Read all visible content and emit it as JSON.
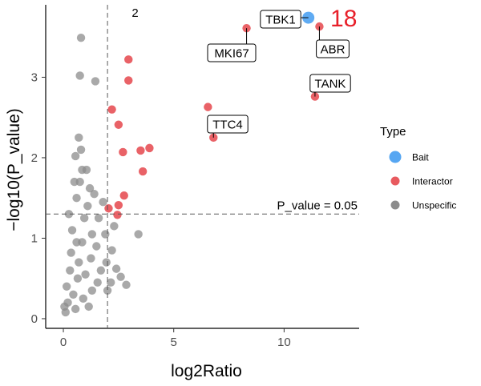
{
  "chart_data": {
    "type": "scatter",
    "title": "",
    "xlabel": "log2Ratio",
    "ylabel": "−log10(P_value)",
    "xlim": [
      -0.8,
      13.4
    ],
    "ylim": [
      -0.12,
      3.9
    ],
    "x_ticks": [
      0,
      5,
      10
    ],
    "x_tick_labels": [
      "0",
      "5",
      "10"
    ],
    "y_ticks": [
      0,
      1,
      2,
      3
    ],
    "y_tick_labels": [
      "0",
      "1",
      "2",
      "3"
    ],
    "grid": false,
    "thresholds": {
      "log2ratio": 2,
      "neg_log10_p": 1.3,
      "p_value_label": "P_value = 0.05"
    },
    "annotations": [
      {
        "text": "2",
        "color": "#000000",
        "x": 3.1,
        "y": 3.81
      },
      {
        "text": "18",
        "color": "#e8202a",
        "x": 12.7,
        "y": 3.75
      }
    ],
    "legend": {
      "title": "Type",
      "position": "right",
      "entries": [
        {
          "name": "Bait",
          "color": "#56a6f2"
        },
        {
          "name": "Interactor",
          "color": "#e85a5f"
        },
        {
          "name": "Unspecific",
          "color": "#8c8c8c"
        }
      ]
    },
    "series": [
      {
        "name": "Bait",
        "color": "#56a6f2",
        "points": [
          {
            "x": 11.1,
            "y": 3.74,
            "label": "TBK1"
          }
        ]
      },
      {
        "name": "Interactor",
        "color": "#e85a5f",
        "points": [
          {
            "x": 11.6,
            "y": 3.63,
            "label": "ABR"
          },
          {
            "x": 8.3,
            "y": 3.61,
            "label": "MKI67"
          },
          {
            "x": 11.4,
            "y": 2.76,
            "label": "TANK"
          },
          {
            "x": 6.8,
            "y": 2.25,
            "label": "TTC4"
          },
          {
            "x": 6.55,
            "y": 2.63
          },
          {
            "x": 2.95,
            "y": 3.22
          },
          {
            "x": 2.95,
            "y": 2.96
          },
          {
            "x": 2.2,
            "y": 2.6
          },
          {
            "x": 2.5,
            "y": 2.41
          },
          {
            "x": 2.7,
            "y": 2.07
          },
          {
            "x": 3.5,
            "y": 2.09
          },
          {
            "x": 3.9,
            "y": 2.12
          },
          {
            "x": 3.6,
            "y": 1.83
          },
          {
            "x": 2.75,
            "y": 1.53
          },
          {
            "x": 2.5,
            "y": 1.41
          },
          {
            "x": 2.05,
            "y": 1.37
          },
          {
            "x": 2.45,
            "y": 1.29
          }
        ]
      },
      {
        "name": "Unspecific",
        "color": "#8c8c8c",
        "points": [
          {
            "x": 0.8,
            "y": 3.49
          },
          {
            "x": 0.75,
            "y": 3.02
          },
          {
            "x": 1.45,
            "y": 2.95
          },
          {
            "x": 0.7,
            "y": 2.25
          },
          {
            "x": 0.55,
            "y": 2.02
          },
          {
            "x": 0.85,
            "y": 1.85
          },
          {
            "x": 0.75,
            "y": 1.7
          },
          {
            "x": 1.2,
            "y": 1.62
          },
          {
            "x": 1.8,
            "y": 1.45
          },
          {
            "x": 2.3,
            "y": 1.15
          },
          {
            "x": 3.4,
            "y": 1.05
          },
          {
            "x": 2.2,
            "y": 0.85
          },
          {
            "x": 2.6,
            "y": 0.52
          },
          {
            "x": 2.85,
            "y": 0.42
          },
          {
            "x": 2.0,
            "y": 0.35
          },
          {
            "x": 1.95,
            "y": 0.7
          },
          {
            "x": 1.6,
            "y": 1.25
          },
          {
            "x": 1.1,
            "y": 1.4
          },
          {
            "x": 1.3,
            "y": 1.05
          },
          {
            "x": 0.95,
            "y": 1.25
          },
          {
            "x": 0.6,
            "y": 1.5
          },
          {
            "x": 1.5,
            "y": 0.9
          },
          {
            "x": 1.25,
            "y": 0.75
          },
          {
            "x": 1.7,
            "y": 0.6
          },
          {
            "x": 0.4,
            "y": 1.1
          },
          {
            "x": 0.3,
            "y": 0.6
          },
          {
            "x": 0.1,
            "y": 0.08
          },
          {
            "x": 0.2,
            "y": 0.2
          },
          {
            "x": 0.45,
            "y": 0.3
          },
          {
            "x": 0.65,
            "y": 0.5
          },
          {
            "x": 0.35,
            "y": 0.82
          },
          {
            "x": 0.85,
            "y": 0.95
          },
          {
            "x": 1.0,
            "y": 0.55
          },
          {
            "x": 0.9,
            "y": 0.25
          },
          {
            "x": 0.55,
            "y": 0.12
          },
          {
            "x": 1.15,
            "y": 0.15
          },
          {
            "x": 1.3,
            "y": 0.35
          },
          {
            "x": 1.55,
            "y": 0.45
          },
          {
            "x": 0.15,
            "y": 0.4
          },
          {
            "x": 0.05,
            "y": 0.15
          },
          {
            "x": 0.25,
            "y": 1.3
          },
          {
            "x": 0.5,
            "y": 1.7
          },
          {
            "x": 1.05,
            "y": 1.85
          },
          {
            "x": 0.8,
            "y": 2.1
          },
          {
            "x": 1.4,
            "y": 1.55
          },
          {
            "x": 1.9,
            "y": 1.05
          },
          {
            "x": 2.4,
            "y": 0.62
          },
          {
            "x": 2.15,
            "y": 0.45
          },
          {
            "x": 0.7,
            "y": 0.7
          },
          {
            "x": 0.6,
            "y": 0.95
          }
        ]
      }
    ]
  }
}
